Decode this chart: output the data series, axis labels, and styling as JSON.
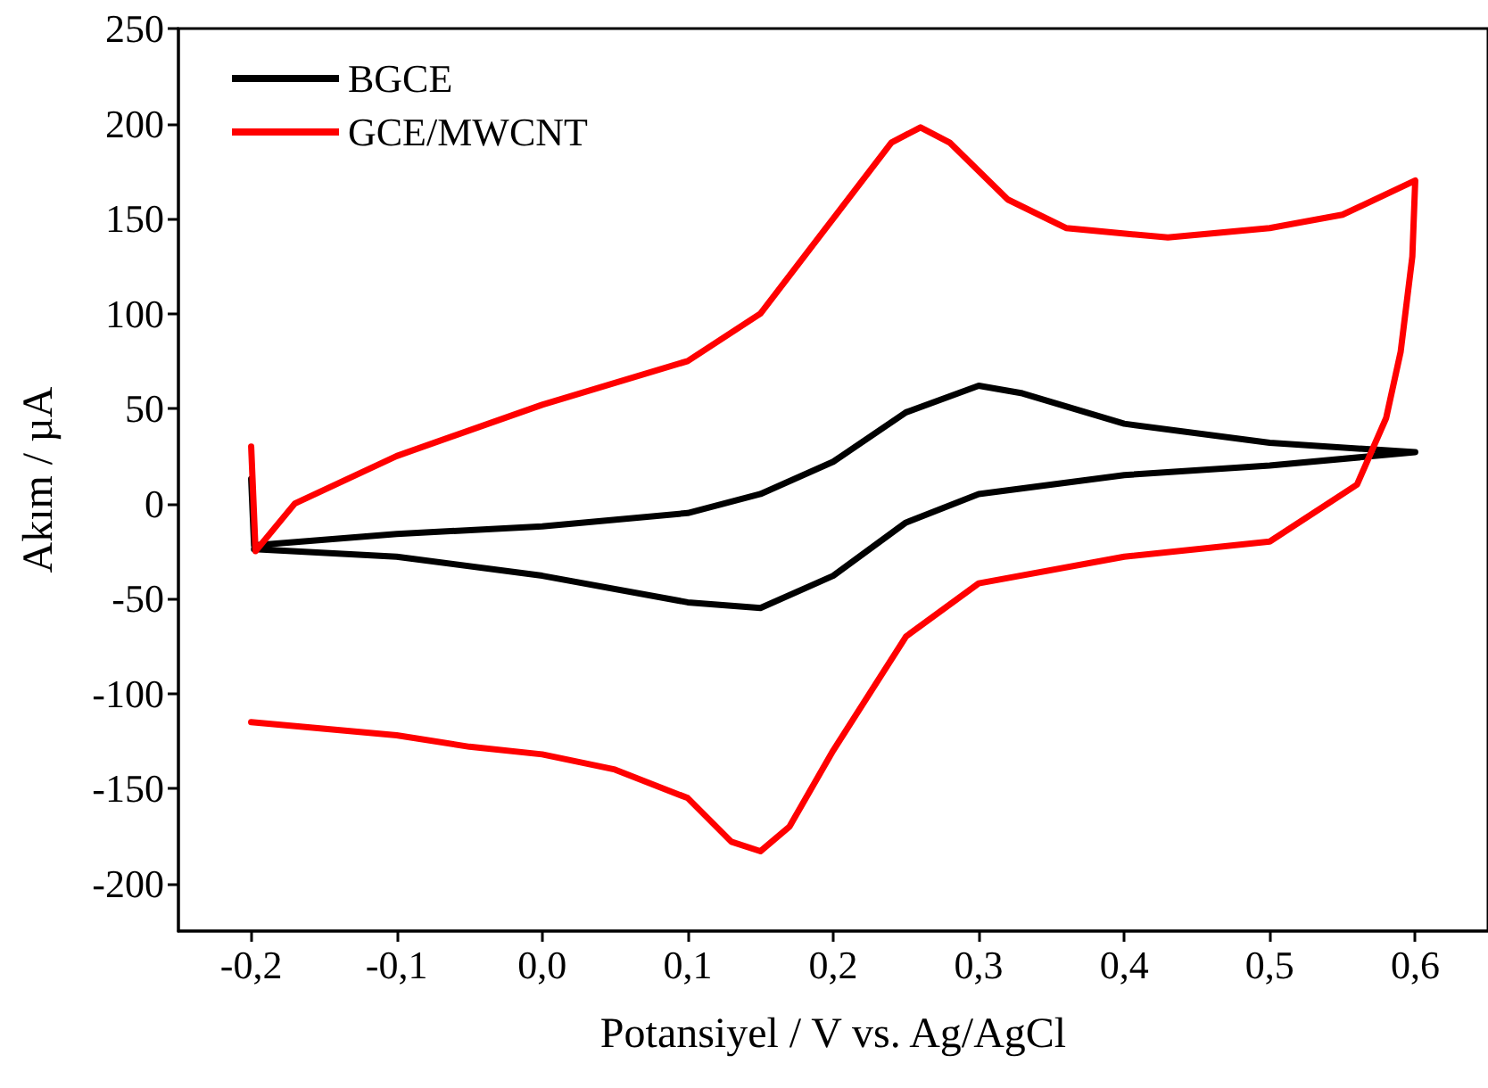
{
  "chart_data": {
    "type": "line",
    "xlabel": "Potansiyel / V vs. Ag/AgCl",
    "ylabel": "Akım / µA",
    "xlim": [
      -0.25,
      0.65
    ],
    "ylim": [
      -225,
      250
    ],
    "xticks": [
      {
        "value": -0.2,
        "label": "-0,2"
      },
      {
        "value": -0.1,
        "label": "-0,1"
      },
      {
        "value": 0,
        "label": "0,0"
      },
      {
        "value": 0.1,
        "label": "0,1"
      },
      {
        "value": 0.2,
        "label": "0,2"
      },
      {
        "value": 0.3,
        "label": "0,3"
      },
      {
        "value": 0.4,
        "label": "0,4"
      },
      {
        "value": 0.5,
        "label": "0,5"
      },
      {
        "value": 0.6,
        "label": "0,6"
      }
    ],
    "yticks": [
      -200,
      -150,
      -100,
      -50,
      0,
      50,
      100,
      150,
      200,
      250
    ],
    "grid": false,
    "legend": "top left",
    "marker": "none",
    "line_style": "solid",
    "series": [
      {
        "name": "BGCE",
        "color": "#000000",
        "x": [
          -0.2,
          -0.198,
          -0.1,
          0,
          0.1,
          0.15,
          0.2,
          0.25,
          0.3,
          0.33,
          0.4,
          0.5,
          0.6,
          0.5,
          0.4,
          0.3,
          0.25,
          0.2,
          0.15,
          0.1,
          0,
          -0.1,
          -0.198
        ],
        "values": [
          13,
          -22,
          -16,
          -12,
          -5,
          5,
          22,
          48,
          62,
          58,
          42,
          32,
          27,
          20,
          15,
          5,
          -10,
          -38,
          -55,
          -52,
          -38,
          -28,
          -24
        ]
      },
      {
        "name": "GCE/MWCNT",
        "color": "#ff0000",
        "x": [
          -0.2,
          -0.197,
          -0.17,
          -0.1,
          0,
          0.1,
          0.15,
          0.2,
          0.24,
          0.26,
          0.28,
          0.32,
          0.36,
          0.43,
          0.5,
          0.55,
          0.6,
          0.598,
          0.59,
          0.58,
          0.56,
          0.5,
          0.4,
          0.3,
          0.25,
          0.2,
          0.17,
          0.15,
          0.13,
          0.1,
          0.05,
          0,
          -0.05,
          -0.1,
          -0.2
        ],
        "values": [
          30,
          -25,
          0,
          25,
          52,
          75,
          100,
          150,
          190,
          198,
          190,
          160,
          145,
          140,
          145,
          152,
          170,
          130,
          80,
          45,
          10,
          -20,
          -28,
          -42,
          -70,
          -130,
          -170,
          -183,
          -178,
          -155,
          -140,
          -132,
          -128,
          -122,
          -115
        ]
      }
    ]
  }
}
